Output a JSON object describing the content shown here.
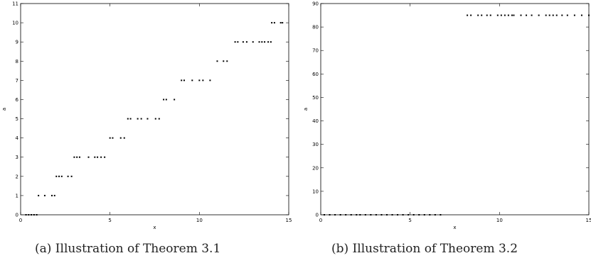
{
  "captions": {
    "a": "(a) Illustration of Theorem 3.1",
    "b": "(b) Illustration of Theorem 3.2"
  },
  "chart_data": [
    {
      "type": "scatter",
      "xlabel": "x",
      "ylabel": "a",
      "xlim": [
        0,
        15
      ],
      "ylim": [
        0,
        11
      ],
      "xticks": [
        0,
        5,
        10,
        15
      ],
      "yticks": [
        0,
        1,
        2,
        3,
        4,
        5,
        6,
        7,
        8,
        9,
        10,
        11
      ],
      "grid": false,
      "marker_color": "#000000",
      "series": [
        {
          "x": [
            0.3,
            0.45,
            0.6,
            0.75,
            0.9,
            1.0,
            1.35,
            1.75,
            1.9,
            2.0,
            2.15,
            2.3,
            2.65,
            2.85,
            3.0,
            3.15,
            3.3,
            3.8,
            4.15,
            4.3,
            4.5,
            4.7,
            5.0,
            5.15,
            5.6,
            5.8,
            6.0,
            6.15,
            6.55,
            6.75,
            7.1,
            7.55,
            7.75,
            8.0,
            8.15,
            8.6,
            9.0,
            9.15,
            9.6,
            10.0,
            10.2,
            10.6,
            11.0,
            11.35,
            11.55,
            12.0,
            12.15,
            12.45,
            12.65,
            13.0,
            13.35,
            13.5,
            13.65,
            13.85,
            14.0,
            14.05,
            14.2,
            14.55,
            14.65
          ],
          "y": [
            0,
            0,
            0,
            0,
            0,
            1,
            1,
            1,
            1,
            2,
            2,
            2,
            2,
            2,
            3,
            3,
            3,
            3,
            3,
            3,
            3,
            3,
            4,
            4,
            4,
            4,
            5,
            5,
            5,
            5,
            5,
            5,
            5,
            6,
            6,
            6,
            7,
            7,
            7,
            7,
            7,
            7,
            8,
            8,
            8,
            9,
            9,
            9,
            9,
            9,
            9,
            9,
            9,
            9,
            9,
            10,
            10,
            10,
            10
          ]
        }
      ]
    },
    {
      "type": "scatter",
      "xlabel": "x",
      "ylabel": "a",
      "xlim": [
        0,
        15
      ],
      "ylim": [
        0,
        90
      ],
      "xticks": [
        0,
        5,
        10,
        15
      ],
      "yticks": [
        0,
        10,
        20,
        30,
        40,
        50,
        60,
        70,
        80,
        90
      ],
      "grid": false,
      "marker_color": "#000000",
      "series": [
        {
          "x": [
            0.2,
            0.5,
            0.8,
            1.1,
            1.4,
            1.7,
            2.0,
            2.2,
            2.5,
            2.8,
            3.1,
            3.4,
            3.7,
            4.0,
            4.3,
            4.6,
            4.9,
            5.2,
            5.5,
            5.8,
            6.1,
            6.4,
            6.7,
            8.2,
            8.4,
            8.8,
            9.0,
            9.3,
            9.5,
            9.9,
            10.1,
            10.3,
            10.5,
            10.7,
            10.8,
            11.2,
            11.5,
            11.8,
            12.2,
            12.6,
            12.8,
            13.0,
            13.2,
            13.5,
            13.8,
            14.2,
            14.6,
            15.0
          ],
          "y": [
            0,
            0,
            0,
            0,
            0,
            0,
            0,
            0,
            0,
            0,
            0,
            0,
            0,
            0,
            0,
            0,
            0,
            0,
            0,
            0,
            0,
            0,
            0,
            85,
            85,
            85,
            85,
            85,
            85,
            85,
            85,
            85,
            85,
            85,
            85,
            85,
            85,
            85,
            85,
            85,
            85,
            85,
            85,
            85,
            85,
            85,
            85,
            85
          ]
        }
      ]
    }
  ]
}
